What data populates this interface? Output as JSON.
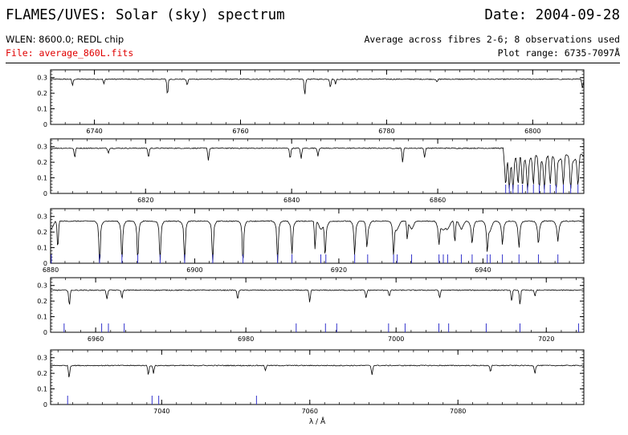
{
  "header": {
    "title": "FLAMES/UVES: Solar (sky) spectrum",
    "date": "Date: 2004-09-28",
    "setting": "WLEN: 8600.0; REDL chip",
    "file": "File: average_860L.fits",
    "fibres": "Average across fibres 2-6; 8 observations used",
    "plot_range": "Plot range: 6735-7097Å"
  },
  "colors": {
    "spectrum": "#000000",
    "markers": "#3333cc",
    "file_text": "#e00000"
  },
  "chart_data": {
    "type": "line",
    "xlabel": "λ / Å",
    "ylabel": "",
    "continuum_level": 0.29,
    "panels": [
      {
        "xlim": [
          6734,
          6807
        ],
        "ylim": [
          0,
          0.35
        ],
        "xticks": [
          6740,
          6760,
          6780,
          6800
        ],
        "yticks": [
          0,
          0.1,
          0.2,
          0.3
        ],
        "continuum": 0.29,
        "lines": [
          [
            6737,
            0.04
          ],
          [
            6741.3,
            0.03
          ],
          [
            6750,
            0.1
          ],
          [
            6752.7,
            0.04
          ],
          [
            6768.8,
            0.1
          ],
          [
            6772.3,
            0.05
          ],
          [
            6773,
            0.03
          ],
          [
            6786.9,
            0.02
          ],
          [
            6806.8,
            0.06
          ]
        ],
        "markers": []
      },
      {
        "xlim": [
          6807,
          6880
        ],
        "ylim": [
          0,
          0.35
        ],
        "xticks": [
          6820,
          6840,
          6860
        ],
        "yticks": [
          0,
          0.1,
          0.2,
          0.3
        ],
        "continuum": 0.29,
        "lines": [
          [
            6810.3,
            0.06
          ],
          [
            6814.9,
            0.03
          ],
          [
            6820.4,
            0.06
          ],
          [
            6828.6,
            0.08
          ],
          [
            6839.8,
            0.07
          ],
          [
            6841.3,
            0.07
          ],
          [
            6843.6,
            0.05
          ],
          [
            6855.2,
            0.09
          ],
          [
            6858.2,
            0.06
          ]
        ],
        "markers": [
          6869.3,
          6869.8,
          6870.3,
          6871.0,
          6871.6,
          6872.3,
          6873.1,
          6873.9,
          6874.6,
          6875.4,
          6876.2,
          6877.2,
          6878.2,
          6879.2
        ],
        "band_head": 6869
      },
      {
        "xlim": [
          6880,
          6954
        ],
        "ylim": [
          0,
          0.35
        ],
        "xticks": [
          6880,
          6900,
          6920,
          6940
        ],
        "yticks": [
          0,
          0.1,
          0.2,
          0.3
        ],
        "continuum": 0.27,
        "lines": [
          [
            6881,
            0.18
          ],
          [
            6886.8,
            0.26
          ],
          [
            6889.9,
            0.2
          ],
          [
            6892.1,
            0.2
          ],
          [
            6895.2,
            0.21
          ],
          [
            6898.6,
            0.24
          ],
          [
            6902.5,
            0.24
          ],
          [
            6906.7,
            0.22
          ],
          [
            6911.5,
            0.22
          ],
          [
            6913.5,
            0.16
          ],
          [
            6916.7,
            0.18
          ],
          [
            6918.1,
            0.18
          ],
          [
            6922.2,
            0.17
          ],
          [
            6923.9,
            0.13
          ],
          [
            6927.6,
            0.17
          ],
          [
            6929.5,
            0.12
          ],
          [
            6933.9,
            0.1
          ],
          [
            6936.1,
            0.14
          ],
          [
            6938.5,
            0.1
          ],
          [
            6940.6,
            0.14
          ],
          [
            6942.7,
            0.1
          ],
          [
            6945.0,
            0.12
          ],
          [
            6947.7,
            0.1
          ],
          [
            6950.4,
            0.08
          ]
        ],
        "markers": [
          6880.1,
          6886.8,
          6889.9,
          6892.1,
          6895.2,
          6898.6,
          6902.5,
          6906.7,
          6911.5,
          6913.5,
          6917.5,
          6918.2,
          6922.2,
          6924.0,
          6927.6,
          6928.1,
          6930.1,
          6933.9,
          6934.5,
          6935.1,
          6937.0,
          6938.5,
          6940.6,
          6941.0,
          6942.7,
          6945.0,
          6947.7,
          6950.4
        ],
        "band_fade": [
          6880,
          6954
        ]
      },
      {
        "xlim": [
          6954,
          7025
        ],
        "ylim": [
          0,
          0.35
        ],
        "xticks": [
          6960,
          6980,
          7000,
          7020
        ],
        "yticks": [
          0,
          0.1,
          0.2,
          0.3
        ],
        "continuum": 0.27,
        "lines": [
          [
            6956.5,
            0.1
          ],
          [
            6961.5,
            0.06
          ],
          [
            6963.5,
            0.05
          ],
          [
            6978.9,
            0.06
          ],
          [
            6988.5,
            0.08
          ],
          [
            6996.0,
            0.05
          ],
          [
            6999.1,
            0.04
          ],
          [
            7005.8,
            0.05
          ],
          [
            7015.4,
            0.07
          ],
          [
            7016.5,
            0.09
          ],
          [
            7018.5,
            0.04
          ]
        ],
        "markers": [
          6955.8,
          6960.8,
          6961.7,
          6963.8,
          6986.7,
          6990.6,
          6992.1,
          6999.0,
          7001.2,
          7005.7,
          7007.0,
          7012.0,
          7016.5,
          7024.3
        ],
        "band_fade": [
          6954,
          7025
        ]
      },
      {
        "xlim": [
          7025,
          7097
        ],
        "ylim": [
          0,
          0.35
        ],
        "xticks": [
          7040,
          7060,
          7080
        ],
        "yticks": [
          0,
          0.1,
          0.2,
          0.3
        ],
        "continuum": 0.25,
        "lines": [
          [
            7027.5,
            0.08
          ],
          [
            7038.2,
            0.06
          ],
          [
            7038.9,
            0.05
          ],
          [
            7054.0,
            0.03
          ],
          [
            7068.4,
            0.06
          ],
          [
            7084.4,
            0.04
          ],
          [
            7090.4,
            0.05
          ]
        ],
        "markers": [
          7027.3,
          7038.7,
          7039.6,
          7052.8
        ],
        "band_fade": [
          7025,
          7097
        ]
      }
    ]
  }
}
